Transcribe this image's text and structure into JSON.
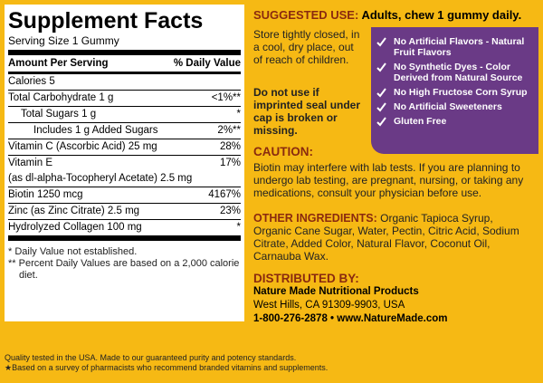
{
  "facts": {
    "title": "Supplement Facts",
    "serving_size": "Serving Size 1 Gummy",
    "header": {
      "amount": "Amount Per Serving",
      "dv": "% Daily Value"
    },
    "rows": [
      {
        "label": "Calories 5"
      },
      {
        "label": "Total Carbohydrate  1 g",
        "dv": "<1%**"
      },
      {
        "label": "Total Sugars  1 g",
        "dv": "*",
        "indent": 1
      },
      {
        "label": "Includes 1 g Added Sugars",
        "dv": "2%**",
        "indent": 2
      },
      {
        "label": "Vitamin C (Ascorbic Acid)  25 mg",
        "dv": "28%"
      },
      {
        "label": "Vitamin E",
        "sub": "(as dl-alpha-Tocopheryl Acetate) 2.5 mg",
        "dv": "17%"
      },
      {
        "label": "Biotin 1250 mcg",
        "dv": "4167%"
      },
      {
        "label": "Zinc (as Zinc Citrate) 2.5 mg",
        "dv": "23%"
      },
      {
        "label": "Hydrolyzed Collagen 100 mg",
        "dv": "*"
      }
    ],
    "footnotes": [
      "*  Daily Value not established.",
      "** Percent Daily Values are based on a 2,000 calorie diet."
    ]
  },
  "suggested_use": {
    "label": "SUGGESTED USE:",
    "text": "Adults, chew 1 gummy daily."
  },
  "storage": "Store tightly closed, in a cool, dry place, out of reach of children.",
  "seal_warning": "Do not use if imprinted seal under cap is broken or missing.",
  "claims": [
    "No Artificial Flavors - Natural Fruit Flavors",
    "No Synthetic Dyes - Color Derived from Natural Source",
    "No High Fructose Corn Syrup",
    "No Artificial Sweeteners",
    "Gluten Free"
  ],
  "caution": {
    "label": "CAUTION:",
    "text": "Biotin may interfere with lab tests. If you are planning to undergo lab testing, are pregnant, nursing, or taking any medications, consult your physician before use."
  },
  "other_ingredients": {
    "label": "OTHER INGREDIENTS:",
    "text": "Organic Tapioca Syrup, Organic Cane Sugar, Water, Pectin, Citric Acid, Sodium Citrate, Added Color, Natural Flavor, Coconut Oil, Carnauba Wax."
  },
  "distributor": {
    "label": "DISTRIBUTED BY:",
    "lines": [
      "Nature Made Nutritional Products",
      "West Hills, CA 91309-9903, USA",
      "1-800-276-2878 • www.NatureMade.com"
    ]
  },
  "footer": [
    "Quality tested in the USA. Made to our guaranteed purity and potency standards.",
    "★Based on a survey of pharmacists who recommend branded vitamins and supplements."
  ]
}
